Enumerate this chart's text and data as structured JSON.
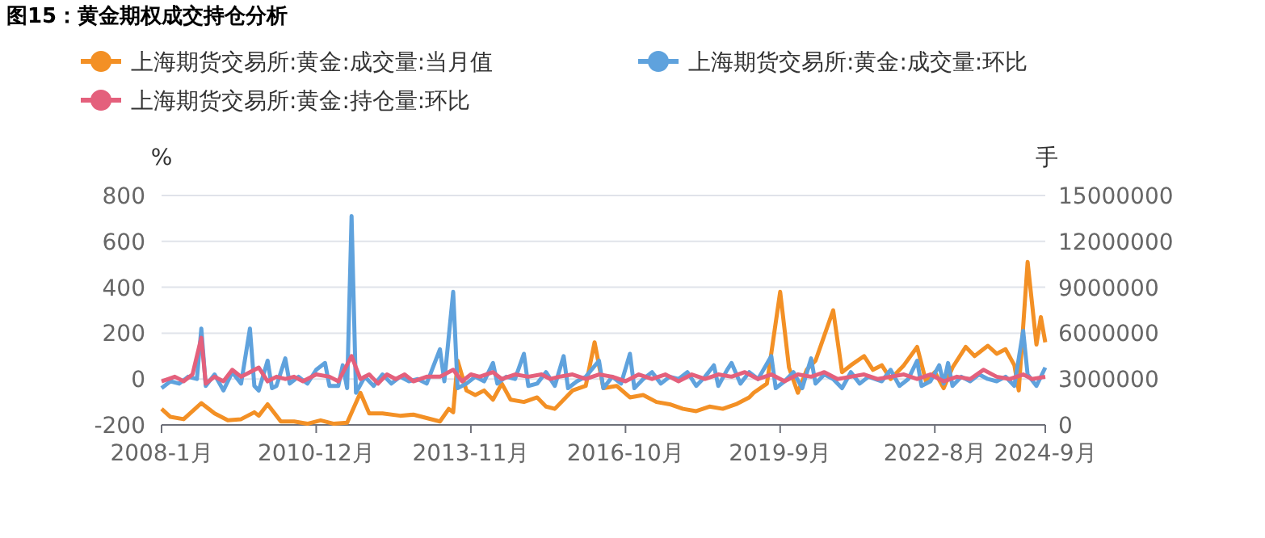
{
  "chart_data": {
    "type": "line",
    "title": "图15：黄金期权成交持仓分析",
    "ylabel": "%",
    "y2label": "手",
    "legend": "top",
    "grid": "y",
    "xlim": [
      "2008-01",
      "2024-09"
    ],
    "xticks": [
      {
        "value": "2008-01",
        "label": "2008-1月"
      },
      {
        "value": "2010-12",
        "label": "2010-12月"
      },
      {
        "value": "2013-11",
        "label": "2013-11月"
      },
      {
        "value": "2016-10",
        "label": "2016-10月"
      },
      {
        "value": "2019-09",
        "label": "2019-9月"
      },
      {
        "value": "2022-08",
        "label": "2022-8月"
      },
      {
        "value": "2024-09",
        "label": "2024-9月"
      }
    ],
    "ylim": [
      -200,
      800
    ],
    "yticks": [
      -200,
      0,
      200,
      400,
      600,
      800
    ],
    "y2lim": [
      0,
      15000000
    ],
    "y2ticks": [
      0,
      3000000,
      6000000,
      9000000,
      12000000,
      15000000
    ],
    "series": [
      {
        "name": "上海期货交易所:黄金:成交量:当月值",
        "color": "#f39025",
        "axis": "y2",
        "x": [
          "2008-01",
          "2008-03",
          "2008-06",
          "2008-10",
          "2009-01",
          "2009-04",
          "2009-07",
          "2009-10",
          "2009-11",
          "2010-01",
          "2010-04",
          "2010-07",
          "2010-10",
          "2011-01",
          "2011-04",
          "2011-07",
          "2011-10",
          "2011-12",
          "2012-03",
          "2012-07",
          "2012-10",
          "2013-01",
          "2013-04",
          "2013-06",
          "2013-07",
          "2013-08",
          "2013-10",
          "2013-12",
          "2014-02",
          "2014-04",
          "2014-06",
          "2014-08",
          "2014-11",
          "2015-02",
          "2015-04",
          "2015-06",
          "2015-10",
          "2016-01",
          "2016-03",
          "2016-05",
          "2016-08",
          "2016-11",
          "2017-02",
          "2017-05",
          "2017-08",
          "2017-11",
          "2018-02",
          "2018-05",
          "2018-08",
          "2018-11",
          "2019-02",
          "2019-03",
          "2019-06",
          "2019-09",
          "2019-11",
          "2020-01",
          "2020-03",
          "2020-05",
          "2020-09",
          "2020-11",
          "2021-01",
          "2021-04",
          "2021-06",
          "2021-08",
          "2021-10",
          "2022-01",
          "2022-04",
          "2022-06",
          "2022-08",
          "2022-10",
          "2022-12",
          "2023-03",
          "2023-05",
          "2023-08",
          "2023-10",
          "2023-12",
          "2024-02",
          "2024-03",
          "2024-05",
          "2024-07",
          "2024-08",
          "2024-09"
        ],
        "values": [
          1050000,
          525000,
          375000,
          1425000,
          750000,
          300000,
          375000,
          825000,
          600000,
          1350000,
          225000,
          225000,
          75000,
          300000,
          75000,
          150000,
          2100000,
          750000,
          750000,
          600000,
          675000,
          450000,
          225000,
          1050000,
          825000,
          4200000,
          2250000,
          1950000,
          2250000,
          1650000,
          2700000,
          1650000,
          1500000,
          1800000,
          1200000,
          1050000,
          2250000,
          2550000,
          5400000,
          2400000,
          2550000,
          1800000,
          1950000,
          1500000,
          1350000,
          1050000,
          900000,
          1200000,
          1050000,
          1350000,
          1800000,
          2100000,
          2700000,
          8700000,
          3750000,
          2100000,
          3600000,
          4200000,
          7500000,
          3450000,
          3900000,
          4500000,
          3600000,
          3900000,
          3000000,
          3900000,
          5100000,
          2850000,
          3450000,
          2400000,
          3750000,
          5100000,
          4500000,
          5175000,
          4650000,
          4950000,
          3900000,
          2250000,
          10650000,
          5250000,
          7050000,
          5400000
        ]
      },
      {
        "name": "上海期货交易所:黄金:成交量:环比",
        "color": "#5fa2dd",
        "x": [
          "2008-01",
          "2008-03",
          "2008-05",
          "2008-07",
          "2008-09",
          "2008-10",
          "2008-11",
          "2009-01",
          "2009-03",
          "2009-05",
          "2009-07",
          "2009-09",
          "2009-10",
          "2009-11",
          "2010-01",
          "2010-02",
          "2010-03",
          "2010-05",
          "2010-06",
          "2010-08",
          "2010-10",
          "2010-12",
          "2011-02",
          "2011-03",
          "2011-05",
          "2011-06",
          "2011-07",
          "2011-08",
          "2011-09",
          "2011-11",
          "2012-01",
          "2012-03",
          "2012-05",
          "2012-07",
          "2012-09",
          "2012-11",
          "2013-01",
          "2013-04",
          "2013-05",
          "2013-07",
          "2013-08",
          "2013-10",
          "2013-12",
          "2014-02",
          "2014-04",
          "2014-05",
          "2014-07",
          "2014-09",
          "2014-11",
          "2014-12",
          "2015-02",
          "2015-04",
          "2015-06",
          "2015-08",
          "2015-09",
          "2015-11",
          "2016-01",
          "2016-04",
          "2016-05",
          "2016-07",
          "2016-09",
          "2016-11",
          "2016-12",
          "2017-02",
          "2017-04",
          "2017-06",
          "2017-08",
          "2017-10",
          "2017-12",
          "2018-02",
          "2018-04",
          "2018-06",
          "2018-07",
          "2018-09",
          "2018-10",
          "2018-12",
          "2019-02",
          "2019-04",
          "2019-07",
          "2019-08",
          "2019-10",
          "2019-12",
          "2020-02",
          "2020-04",
          "2020-05",
          "2020-07",
          "2020-09",
          "2020-11",
          "2021-01",
          "2021-03",
          "2021-05",
          "2021-08",
          "2021-10",
          "2021-12",
          "2022-02",
          "2022-04",
          "2022-05",
          "2022-07",
          "2022-09",
          "2022-10",
          "2022-11",
          "2022-12",
          "2023-02",
          "2023-04",
          "2023-06",
          "2023-08",
          "2023-10",
          "2023-12",
          "2024-02",
          "2024-04",
          "2024-05",
          "2024-07",
          "2024-09"
        ],
        "values": [
          -40,
          -10,
          -20,
          10,
          0,
          220,
          -30,
          20,
          -50,
          30,
          -20,
          220,
          -30,
          -50,
          80,
          -40,
          -30,
          90,
          -20,
          10,
          -20,
          40,
          70,
          -30,
          -30,
          60,
          -40,
          710,
          -60,
          10,
          -30,
          20,
          -20,
          10,
          -10,
          0,
          -20,
          130,
          -10,
          380,
          -40,
          -20,
          10,
          -10,
          70,
          -20,
          10,
          0,
          110,
          -30,
          -20,
          30,
          -30,
          100,
          -40,
          -10,
          10,
          80,
          -40,
          10,
          -20,
          110,
          -40,
          0,
          30,
          -20,
          10,
          0,
          30,
          -30,
          10,
          60,
          -30,
          40,
          70,
          -20,
          30,
          0,
          100,
          -40,
          -10,
          30,
          -40,
          90,
          -20,
          20,
          0,
          -40,
          30,
          -20,
          10,
          -10,
          40,
          -30,
          0,
          80,
          -30,
          -10,
          60,
          -20,
          70,
          -30,
          10,
          -10,
          20,
          0,
          -10,
          10,
          -30,
          210,
          20,
          -30,
          50
        ]
      },
      {
        "name": "上海期货交易所:黄金:持仓量:环比",
        "color": "#e4607c",
        "x": [
          "2008-01",
          "2008-04",
          "2008-06",
          "2008-08",
          "2008-10",
          "2008-11",
          "2009-01",
          "2009-03",
          "2009-05",
          "2009-07",
          "2009-09",
          "2009-11",
          "2010-01",
          "2010-03",
          "2010-05",
          "2010-07",
          "2010-09",
          "2010-12",
          "2011-03",
          "2011-05",
          "2011-08",
          "2011-10",
          "2011-12",
          "2012-02",
          "2012-04",
          "2012-06",
          "2012-08",
          "2012-10",
          "2013-01",
          "2013-04",
          "2013-07",
          "2013-09",
          "2013-11",
          "2014-01",
          "2014-04",
          "2014-06",
          "2014-09",
          "2014-12",
          "2015-03",
          "2015-05",
          "2015-07",
          "2015-10",
          "2016-01",
          "2016-04",
          "2016-07",
          "2016-10",
          "2017-01",
          "2017-04",
          "2017-07",
          "2017-10",
          "2018-01",
          "2018-04",
          "2018-07",
          "2018-10",
          "2019-01",
          "2019-04",
          "2019-07",
          "2019-10",
          "2020-01",
          "2020-04",
          "2020-07",
          "2020-10",
          "2021-01",
          "2021-04",
          "2021-07",
          "2021-10",
          "2022-01",
          "2022-04",
          "2022-07",
          "2022-10",
          "2023-01",
          "2023-04",
          "2023-07",
          "2023-10",
          "2024-01",
          "2024-04",
          "2024-06",
          "2024-09"
        ],
        "values": [
          -10,
          10,
          -10,
          20,
          180,
          -20,
          10,
          -10,
          40,
          10,
          30,
          50,
          -10,
          10,
          0,
          10,
          -10,
          20,
          10,
          -10,
          100,
          0,
          20,
          -20,
          20,
          0,
          20,
          -10,
          10,
          10,
          40,
          -10,
          20,
          10,
          30,
          0,
          20,
          10,
          20,
          0,
          10,
          20,
          0,
          20,
          10,
          -10,
          20,
          0,
          20,
          -10,
          20,
          0,
          20,
          10,
          30,
          0,
          20,
          -10,
          20,
          10,
          30,
          0,
          10,
          20,
          0,
          10,
          20,
          0,
          20,
          -10,
          10,
          0,
          40,
          10,
          0,
          20,
          0,
          10
        ]
      }
    ]
  }
}
